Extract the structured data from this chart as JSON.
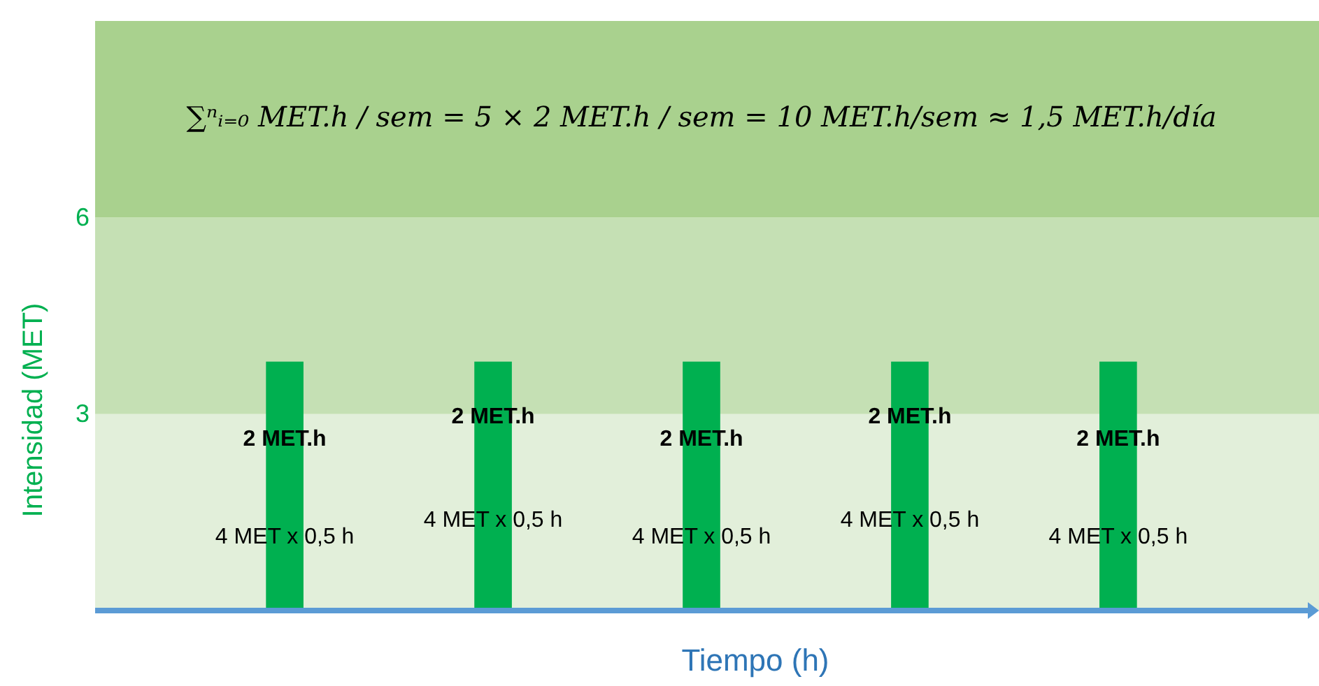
{
  "chart_data": {
    "type": "bar",
    "title": "∑ⁿᵢ₌₀ MET.h / sem = 5 × 2 MET.h / sem = 10 MET.h/sem ≈ 1,5 MET.h/día",
    "xlabel": "Tiempo (h)",
    "ylabel": "Intensidad (MET)",
    "categories": [
      null,
      null,
      null,
      null,
      null
    ],
    "values": [
      3.8,
      3.8,
      3.8,
      3.8,
      3.8
    ],
    "color": "#00b050",
    "ylim": [
      0,
      9
    ],
    "yticks": [
      3,
      6
    ],
    "tick_labels": "y",
    "bands": [
      {
        "axis": "y",
        "from": 0,
        "to": 3,
        "color": "#e2efda"
      },
      {
        "axis": "y",
        "from": 3,
        "to": 6,
        "color": "#c5e0b4"
      },
      {
        "axis": "y",
        "from": 6,
        "to": 9,
        "color": "#a9d18e"
      }
    ],
    "annotations": [
      "2 MET.h",
      "2 MET.h",
      "2 MET.h",
      "2 MET.h",
      "2 MET.h",
      "4 MET x 0,5 h",
      "4 MET x 0,5 h",
      "4 MET x 0,5 h",
      "4 MET x 0,5 h",
      "4 MET x 0,5 h"
    ]
  }
}
